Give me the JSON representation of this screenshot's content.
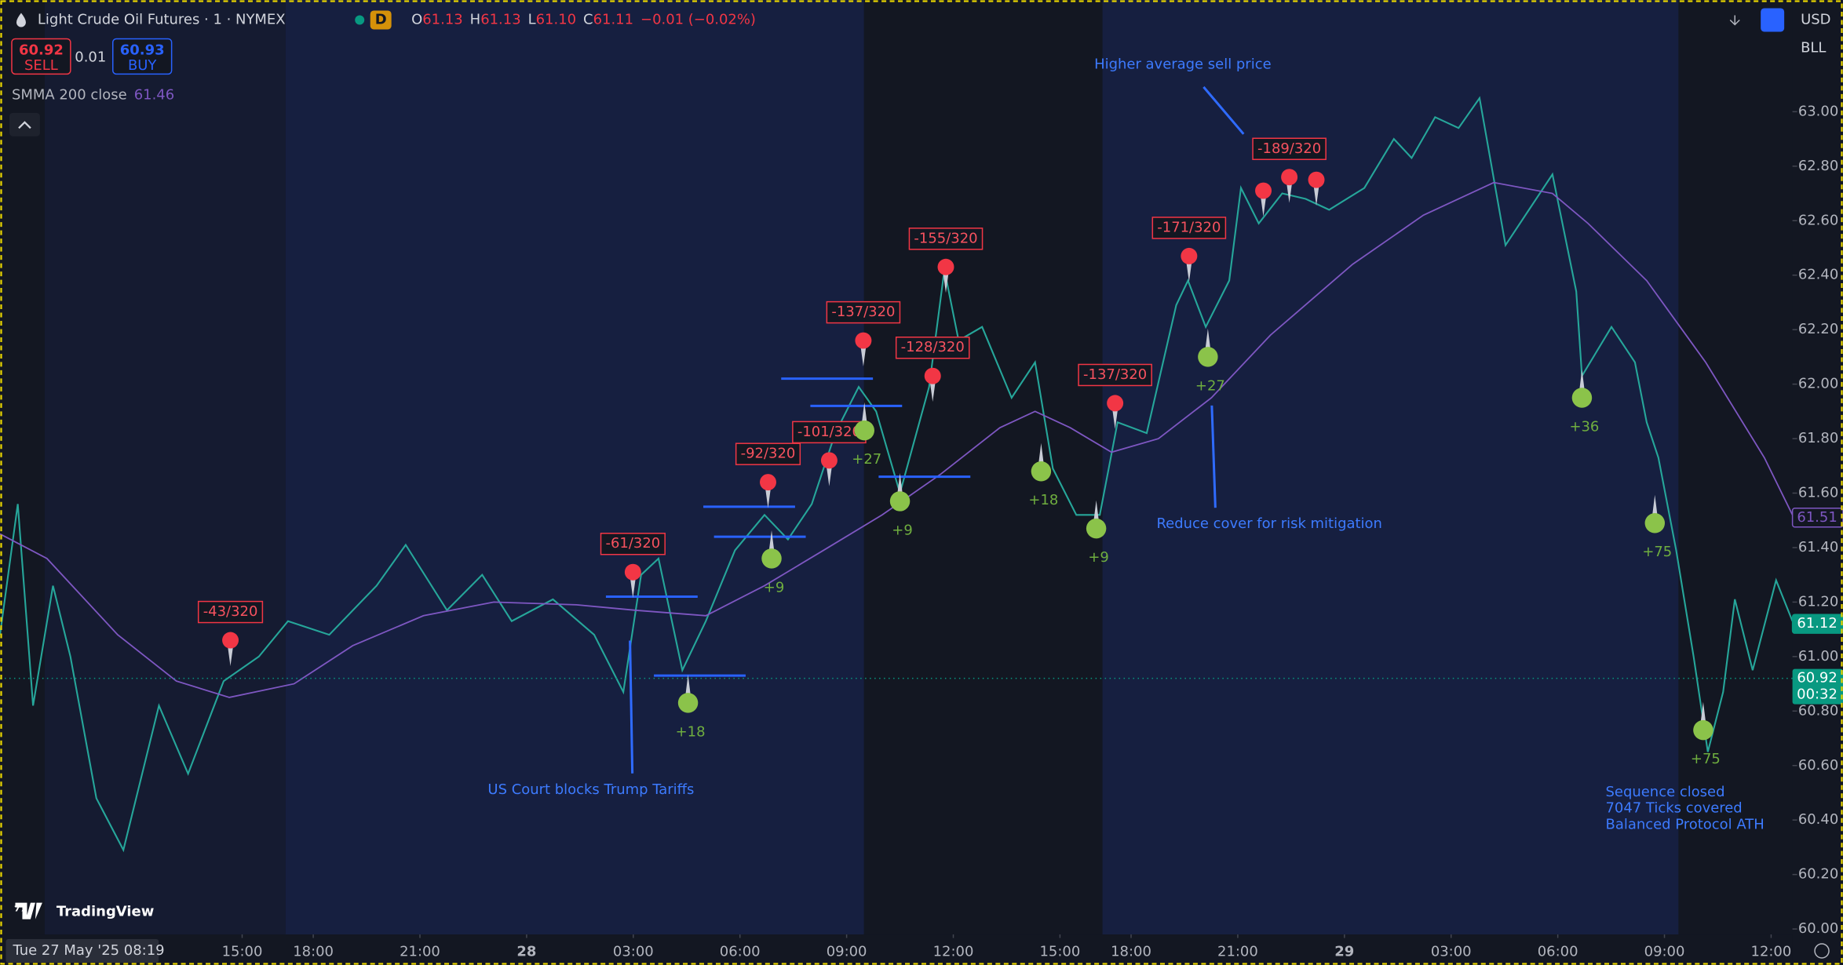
{
  "header": {
    "title": "Light Crude Oil Futures · 1 · NYMEX",
    "badge": "D",
    "ohlc": [
      {
        "label": "O",
        "value": "61.13"
      },
      {
        "label": "H",
        "value": "61.13"
      },
      {
        "label": "L",
        "value": "61.10"
      },
      {
        "label": "C",
        "value": "61.11"
      }
    ],
    "change": "−0.01 (−0.02%)"
  },
  "trade": {
    "sell_price": "60.92",
    "sell": "SELL",
    "spread": "0.01",
    "buy_price": "60.93",
    "buy": "BUY"
  },
  "indicator_value": "61.46",
  "toolbar": {
    "currency": "USD",
    "unit": "BLL"
  },
  "logo": "TradingView",
  "cursor_time": "Tue 27 May '25  08:19",
  "annotations": [
    "US Court blocks Trump Tariffs",
    "Higher average sell price",
    "Reduce cover for risk mitigation"
  ],
  "summary": [
    "Sequence closed",
    "7047 Ticks covered",
    "Balanced Protocol ATH"
  ],
  "chart_data": {
    "type": "line",
    "xlim": [
      8.19,
      60.6
    ],
    "ylim": [
      59.98,
      63.41
    ],
    "session_breaks": [
      [
        17,
        18
      ],
      [
        41,
        42
      ]
    ],
    "xticks": [
      {
        "value": 15,
        "label": "15:00"
      },
      {
        "value": 18,
        "label": "18:00"
      },
      {
        "value": 21,
        "label": "21:00"
      },
      {
        "value": 24,
        "label": "28"
      },
      {
        "value": 27,
        "label": "03:00"
      },
      {
        "value": 30,
        "label": "06:00"
      },
      {
        "value": 33,
        "label": "09:00"
      },
      {
        "value": 36,
        "label": "12:00"
      },
      {
        "value": 39,
        "label": "15:00"
      },
      {
        "value": 42,
        "label": "18:00"
      },
      {
        "value": 45,
        "label": "21:00"
      },
      {
        "value": 48,
        "label": "29"
      },
      {
        "value": 51,
        "label": "03:00"
      },
      {
        "value": 54,
        "label": "06:00"
      },
      {
        "value": 57,
        "label": "09:00"
      },
      {
        "value": 60,
        "label": "12:00"
      }
    ],
    "yticks": [
      {
        "value": 60,
        "label": "60.00"
      },
      {
        "value": 60.2,
        "label": "60.20"
      },
      {
        "value": 60.4,
        "label": "60.40"
      },
      {
        "value": 60.6,
        "label": "60.60"
      },
      {
        "value": 60.8,
        "label": "60.80"
      },
      {
        "value": 61,
        "label": "61.00"
      },
      {
        "value": 61.2,
        "label": "61.20"
      },
      {
        "value": 61.4,
        "label": "61.40"
      },
      {
        "value": 61.6,
        "label": "61.60"
      },
      {
        "value": 61.8,
        "label": "61.80"
      },
      {
        "value": 62,
        "label": "62.00"
      },
      {
        "value": 62.2,
        "label": "62.20"
      },
      {
        "value": 62.4,
        "label": "62.40"
      },
      {
        "value": 62.6,
        "label": "62.60"
      },
      {
        "value": 62.8,
        "label": "62.80"
      },
      {
        "value": 63,
        "label": "63.00"
      }
    ],
    "grid": false,
    "series": [
      {
        "color": "#26a69a",
        "x": [
          8.19,
          8.69,
          9.12,
          9.68,
          10.17,
          10.9,
          11.66,
          12.66,
          13.48,
          14.48,
          15.47,
          16.29,
          18.45,
          19.78,
          20.6,
          21.76,
          22.75,
          23.58,
          24.74,
          25.9,
          26.72,
          27.22,
          27.71,
          28.38,
          29.04,
          29.86,
          30.69,
          31.35,
          32.02,
          32.68,
          33.34,
          33.83,
          34.5,
          35.32,
          35.75,
          36.15,
          36.81,
          37.64,
          38.3,
          38.8,
          39.46,
          40.12,
          40.62,
          42.44,
          43.27,
          43.6,
          44.1,
          44.76,
          45.09,
          45.59,
          46.25,
          46.91,
          47.57,
          48.56,
          49.39,
          49.89,
          50.55,
          51.21,
          51.8,
          52.53,
          53.19,
          53.85,
          54.52,
          54.68,
          55.51,
          56.17,
          56.5,
          56.83,
          57.33,
          57.82,
          58.22,
          58.65,
          58.98,
          59.48,
          60.14,
          60.6
        ],
        "values": [
          61.08,
          61.56,
          60.82,
          61.26,
          61.0,
          60.48,
          60.29,
          60.82,
          60.57,
          60.91,
          61.0,
          61.13,
          61.08,
          61.26,
          61.41,
          61.17,
          61.3,
          61.13,
          61.21,
          61.08,
          60.87,
          61.3,
          61.36,
          60.95,
          61.13,
          61.39,
          61.52,
          61.43,
          61.56,
          61.82,
          61.99,
          61.9,
          61.6,
          61.99,
          62.42,
          62.16,
          62.21,
          61.95,
          62.08,
          61.69,
          61.52,
          61.52,
          61.86,
          61.82,
          62.29,
          62.38,
          62.21,
          62.38,
          62.72,
          62.59,
          62.7,
          62.68,
          62.64,
          62.72,
          62.9,
          62.83,
          62.98,
          62.94,
          63.05,
          62.51,
          62.64,
          62.77,
          62.34,
          62.03,
          62.21,
          62.08,
          61.86,
          61.73,
          61.39,
          61.0,
          60.65,
          60.87,
          61.21,
          60.95,
          61.28,
          61.13
        ]
      },
      {
        "name": "SMMA 200 close",
        "color": "#7e57c2",
        "x": [
          8.19,
          9.51,
          11.5,
          13.15,
          14.64,
          16.46,
          19.11,
          21.1,
          23.08,
          25.4,
          27.05,
          29.04,
          30.69,
          32.35,
          34.0,
          35.65,
          37.31,
          38.3,
          39.29,
          40.45,
          42.77,
          44.26,
          45.92,
          48.23,
          50.22,
          52.2,
          53.85,
          54.85,
          56.5,
          58.16,
          59.81,
          60.6
        ],
        "values": [
          61.45,
          61.36,
          61.08,
          60.91,
          60.85,
          60.9,
          61.04,
          61.15,
          61.2,
          61.19,
          61.17,
          61.15,
          61.26,
          61.39,
          61.52,
          61.67,
          61.84,
          61.9,
          61.84,
          61.75,
          61.8,
          61.95,
          62.18,
          62.44,
          62.62,
          62.74,
          62.7,
          62.59,
          62.38,
          62.08,
          61.73,
          61.52
        ]
      }
    ],
    "sells": {
      "color": "#f23645",
      "x": [
        14.67,
        26.99,
        30.79,
        32.51,
        33.47,
        35.42,
        35.79,
        40.55,
        43.63,
        45.72,
        46.45,
        47.21
      ],
      "values": [
        61.06,
        61.31,
        61.64,
        61.72,
        62.16,
        62.03,
        62.43,
        61.93,
        62.47,
        62.71,
        62.76,
        62.75
      ],
      "labels": [
        "-43/320",
        "-61/320",
        "-92/320",
        "-101/320",
        "-137/320",
        "-128/320",
        "-155/320",
        "-137/320",
        "-171/320",
        null,
        "-189/320",
        null
      ]
    },
    "buys": {
      "color": "#8bc34a",
      "x": [
        28.54,
        30.89,
        33.5,
        34.5,
        38.47,
        40.02,
        44.16,
        54.68,
        56.73,
        58.09
      ],
      "values": [
        60.83,
        61.36,
        61.83,
        61.57,
        61.68,
        61.47,
        62.1,
        61.95,
        61.49,
        60.73
      ],
      "labels": [
        "+18",
        "+9",
        "+27",
        "+9",
        "+18",
        "+9",
        "+27",
        "+36",
        "+75",
        "+75"
      ]
    },
    "levels": {
      "color": "#2962ff",
      "x_start": [
        26.23,
        27.58,
        28.97,
        29.27,
        31.16,
        31.98,
        33.9
      ],
      "x_end": [
        28.81,
        30.16,
        31.55,
        31.85,
        33.74,
        34.56,
        36.48
      ],
      "values": [
        61.22,
        60.93,
        61.55,
        61.44,
        62.02,
        61.92,
        61.66
      ]
    },
    "price_badges": [
      {
        "value": 61.51,
        "color": "#7e57c2"
      },
      {
        "value": 61.12,
        "color": "#089981"
      },
      {
        "value": 60.92,
        "color": "#089981",
        "countdown": "00:32"
      }
    ]
  }
}
